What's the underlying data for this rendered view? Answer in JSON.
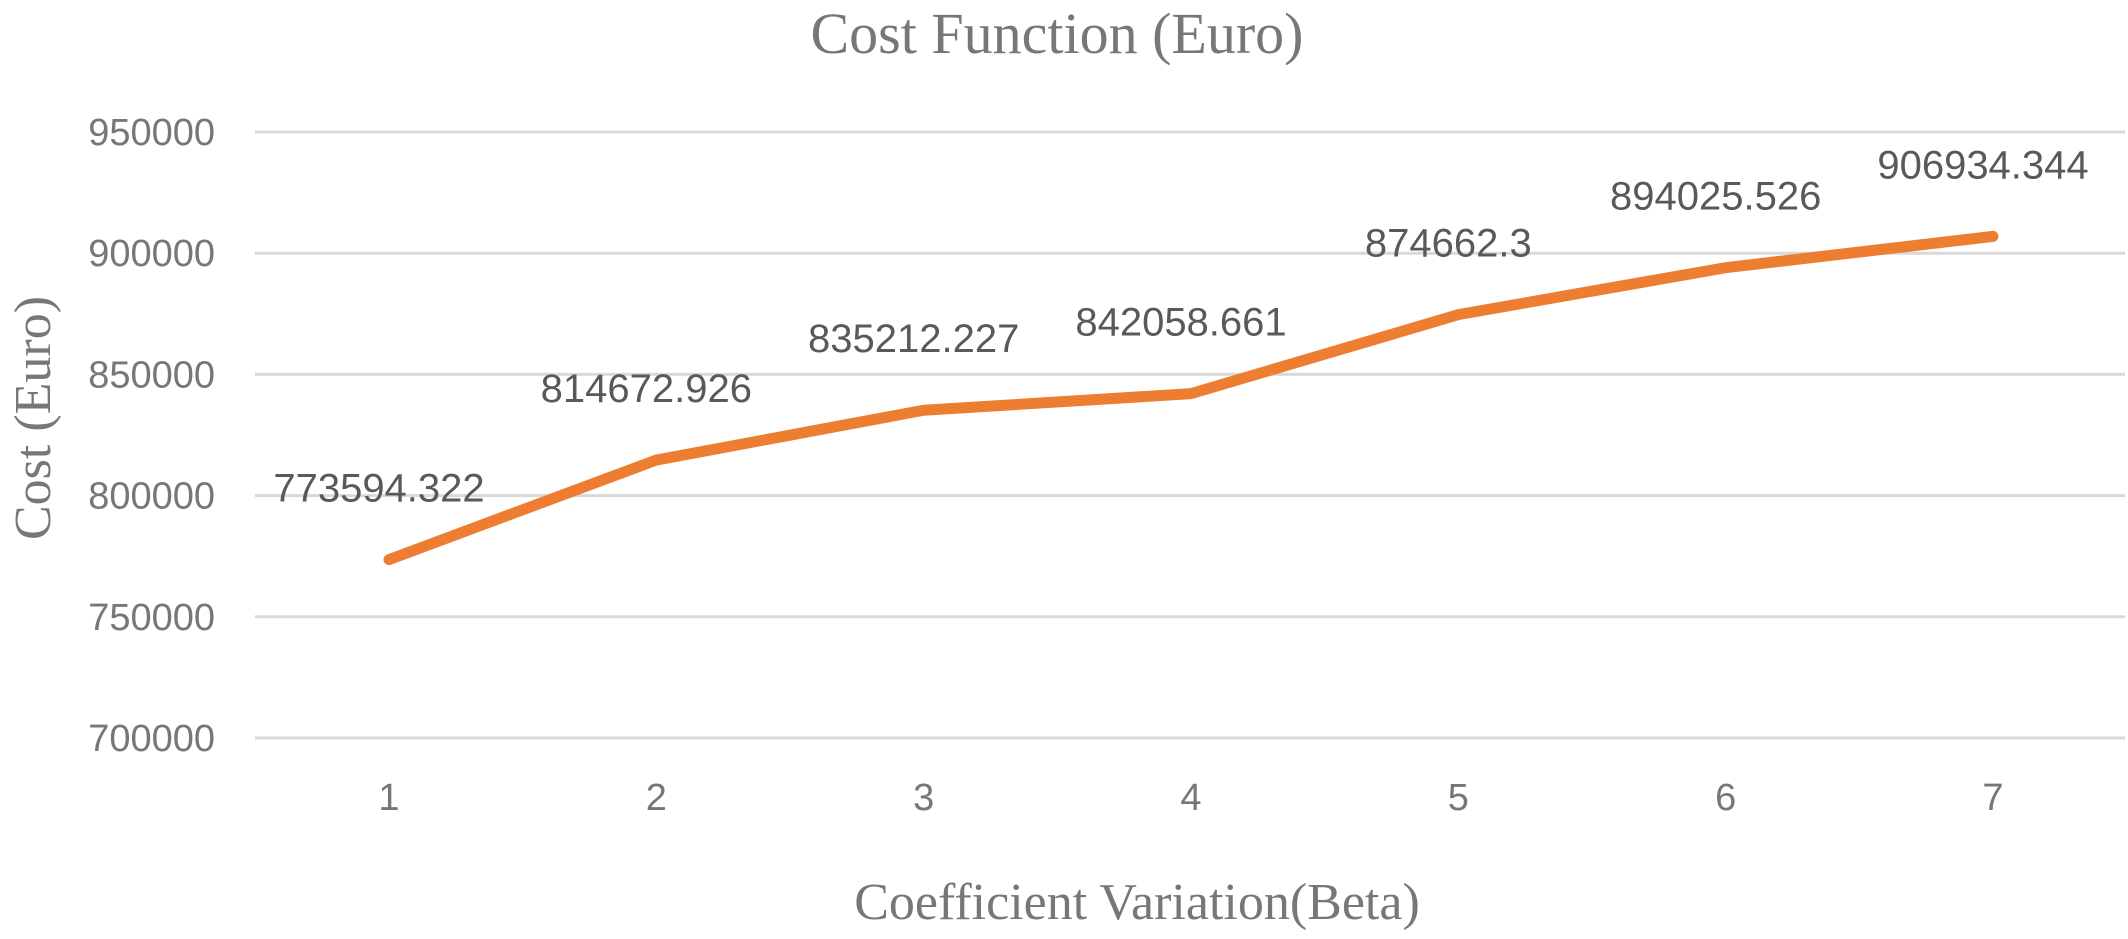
{
  "chart_data": {
    "type": "line",
    "title": "Cost Function (Euro)",
    "xlabel": "Coefficient Variation(Beta)",
    "ylabel": "Cost (Euro)",
    "categories": [
      "1",
      "2",
      "3",
      "4",
      "5",
      "6",
      "7"
    ],
    "series": [
      {
        "values": [
          773594.322,
          814672.926,
          835212.227,
          842058.661,
          874662.3,
          894025.526,
          906934.344
        ],
        "labels": [
          "773594.322",
          "814672.926",
          "835212.227",
          "842058.661",
          "874662.3",
          "894025.526",
          "906934.344"
        ],
        "color": "#ED7D31"
      }
    ],
    "ylim": [
      700000,
      950000
    ],
    "yticks": [
      "700000",
      "750000",
      "800000",
      "850000",
      "900000",
      "950000"
    ],
    "grid": true,
    "legend": "none"
  }
}
